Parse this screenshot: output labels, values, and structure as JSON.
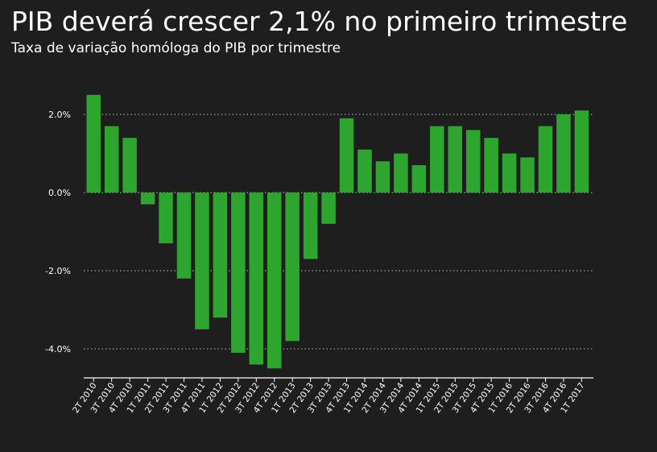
{
  "chart_data": {
    "type": "bar",
    "title": "PIB deverá crescer 2,1% no primeiro trimestre",
    "subtitle": "Taxa de variação homóloga do PIB por trimestre",
    "xlabel": "",
    "ylabel": "",
    "categories": [
      "2T 2010",
      "3T 2010",
      "4T 2010",
      "1T 2011",
      "2T 2011",
      "3T 2011",
      "4T 2011",
      "1T 2012",
      "2T 2012",
      "3T 2012",
      "4T 2012",
      "1T 2013",
      "2T 2013",
      "3T 2013",
      "4T 2013",
      "1T 2014",
      "2T 2014",
      "3T 2014",
      "4T 2014",
      "1T 2015",
      "2T 2015",
      "3T 2015",
      "4T 2015",
      "1T 2016",
      "2T 2016",
      "3T 2016",
      "4T 2016",
      "1T 2017"
    ],
    "values": [
      2.5,
      1.7,
      1.4,
      -0.3,
      -1.3,
      -2.2,
      -3.5,
      -3.2,
      -4.1,
      -4.4,
      -4.5,
      -3.8,
      -1.7,
      -0.8,
      1.9,
      1.1,
      0.8,
      1.0,
      0.7,
      1.7,
      1.7,
      1.6,
      1.4,
      1.0,
      0.9,
      1.7,
      2.0,
      2.1
    ],
    "y_ticks": [
      2.0,
      0.0,
      -2.0,
      -4.0
    ],
    "y_tick_labels": [
      "2.0%",
      "0.0%",
      "-2.0%",
      "-4.0%"
    ],
    "ylim": [
      -4.7,
      2.7
    ],
    "grid": true,
    "legend": "none",
    "bar_color": "#2ea52e",
    "background_color": "#1e1e1e",
    "text_color": "#ffffff"
  }
}
